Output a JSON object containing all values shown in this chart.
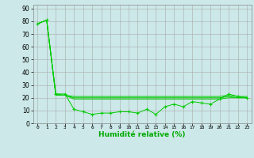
{
  "x": [
    0,
    1,
    2,
    3,
    4,
    5,
    6,
    7,
    8,
    9,
    10,
    11,
    12,
    13,
    14,
    15,
    16,
    17,
    18,
    19,
    20,
    21,
    22,
    23
  ],
  "line1": [
    78,
    81,
    23,
    23,
    11,
    9,
    7,
    8,
    8,
    9,
    9,
    8,
    11,
    7,
    13,
    15,
    13,
    17,
    16,
    15,
    19,
    23,
    21,
    20
  ],
  "line2": [
    78,
    81,
    23,
    22,
    19,
    19,
    19,
    19,
    19,
    19,
    19,
    19,
    19,
    19,
    19,
    19,
    19,
    19,
    19,
    19,
    19,
    20,
    20,
    20
  ],
  "line3": [
    78,
    81,
    22,
    22,
    20,
    20,
    20,
    20,
    20,
    20,
    20,
    20,
    20,
    20,
    20,
    20,
    20,
    20,
    20,
    20,
    20,
    21,
    20,
    20
  ],
  "line4": [
    78,
    81,
    22,
    22,
    21,
    21,
    21,
    21,
    21,
    21,
    21,
    21,
    21,
    21,
    21,
    21,
    21,
    21,
    21,
    21,
    21,
    22,
    21,
    21
  ],
  "line_color": "#00cc00",
  "bg_color": "#cce8e8",
  "grid_color": "#aaaaaa",
  "xlabel": "Humidité relative (%)",
  "xlabel_color": "#00aa00",
  "yticks": [
    0,
    10,
    20,
    30,
    40,
    50,
    60,
    70,
    80,
    90
  ],
  "xticks": [
    0,
    1,
    2,
    3,
    4,
    5,
    6,
    7,
    8,
    9,
    10,
    11,
    12,
    13,
    14,
    15,
    16,
    17,
    18,
    19,
    20,
    21,
    22,
    23
  ],
  "xlim": [
    -0.5,
    23.5
  ],
  "ylim": [
    0,
    93
  ]
}
